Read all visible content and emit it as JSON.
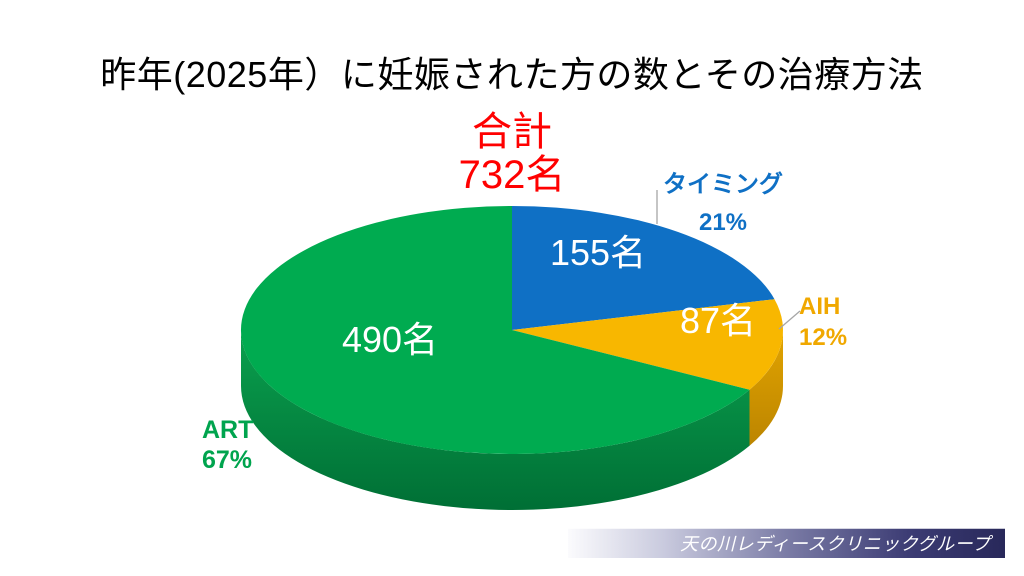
{
  "title": "昨年(2025年）に妊娠された方の数とその治療方法",
  "chart_data": {
    "type": "pie",
    "style": "3d",
    "title": "昨年(2025年）に妊娠された方の数とその治療方法",
    "unit": "名",
    "total": {
      "label": "合計",
      "value": 732,
      "value_label": "732名"
    },
    "start_angle_deg": 0,
    "direction": "clockwise",
    "legend_position": "outside-callouts",
    "series": [
      {
        "name": "タイミング",
        "value": 155,
        "value_label": "155名",
        "percent": 21,
        "percent_label": "21%",
        "color": "#0F70C5",
        "label_color": "#0F70C5",
        "side_light": "#0B5FA8",
        "side_dark": "#094E86"
      },
      {
        "name": "AIH",
        "value": 87,
        "value_label": "87名",
        "percent": 12,
        "percent_label": "12%",
        "color": "#F8B700",
        "label_color": "#F0A800",
        "side_light": "#E2A400",
        "side_dark": "#BC8500"
      },
      {
        "name": "ART",
        "value": 490,
        "value_label": "490名",
        "percent": 67,
        "percent_label": "67%",
        "color": "#00AB50",
        "label_color": "#00A44E",
        "side_light": "#0AA04E",
        "side_dark": "#006F35"
      }
    ]
  },
  "footer": {
    "brand": "天の川レディースクリニックグループ"
  },
  "colors": {
    "background": "#FFFFFF",
    "title": "#000000",
    "total": "#FF0000",
    "data_label": "#FFFFFF",
    "leader": "#A6A6A6",
    "banner_text": "#FFFFFF",
    "banner_gradient": [
      "#FBFBFD",
      "#C9CADE",
      "#7B7CA6",
      "#3C3C74",
      "#28285A"
    ]
  }
}
